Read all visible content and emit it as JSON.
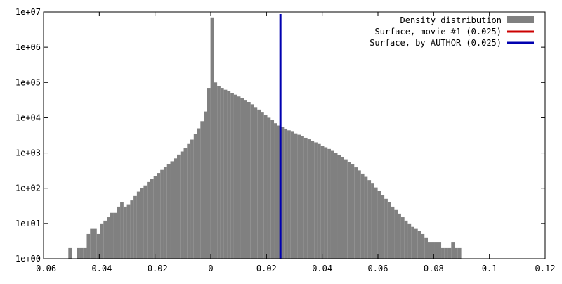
{
  "chart_data": {
    "type": "bar",
    "y_scale": "log",
    "x_range": [
      -0.06,
      0.12
    ],
    "y_range": [
      1,
      10000000
    ],
    "x_ticks": [
      "-0.06",
      "-0.04",
      "-0.02",
      "0",
      "0.02",
      "0.04",
      "0.06",
      "0.08",
      "0.1",
      "0.12"
    ],
    "x_tick_values": [
      -0.06,
      -0.04,
      -0.02,
      0,
      0.02,
      0.04,
      0.06,
      0.08,
      0.1,
      0.12
    ],
    "y_ticks": [
      "1e+00",
      "1e+01",
      "1e+02",
      "1e+03",
      "1e+04",
      "1e+05",
      "1e+06",
      "1e+07"
    ],
    "y_tick_values": [
      1,
      10,
      100,
      1000,
      10000,
      100000,
      1000000,
      10000000
    ],
    "legend_position": "top-right",
    "grid": false,
    "bin_width": 0.0012,
    "histogram": {
      "name": "Density distribution",
      "color": "#808080",
      "bins": [
        [
          -0.0505,
          2
        ],
        [
          -0.0495,
          0
        ],
        [
          -0.0485,
          0
        ],
        [
          -0.0475,
          2
        ],
        [
          -0.0463,
          2
        ],
        [
          -0.0451,
          2
        ],
        [
          -0.0439,
          5
        ],
        [
          -0.0427,
          7
        ],
        [
          -0.0415,
          7
        ],
        [
          -0.0403,
          5
        ],
        [
          -0.0391,
          10
        ],
        [
          -0.0379,
          12
        ],
        [
          -0.0367,
          15
        ],
        [
          -0.0355,
          20
        ],
        [
          -0.0343,
          20
        ],
        [
          -0.0331,
          30
        ],
        [
          -0.0319,
          40
        ],
        [
          -0.0307,
          30
        ],
        [
          -0.0295,
          35
        ],
        [
          -0.0283,
          45
        ],
        [
          -0.0271,
          60
        ],
        [
          -0.0259,
          80
        ],
        [
          -0.0247,
          100
        ],
        [
          -0.0235,
          120
        ],
        [
          -0.0223,
          150
        ],
        [
          -0.0211,
          180
        ],
        [
          -0.0199,
          220
        ],
        [
          -0.0187,
          270
        ],
        [
          -0.0175,
          330
        ],
        [
          -0.0163,
          400
        ],
        [
          -0.0151,
          480
        ],
        [
          -0.0139,
          580
        ],
        [
          -0.0127,
          700
        ],
        [
          -0.0115,
          900
        ],
        [
          -0.0103,
          1100
        ],
        [
          -0.0091,
          1400
        ],
        [
          -0.0079,
          1800
        ],
        [
          -0.0067,
          2400
        ],
        [
          -0.0055,
          3500
        ],
        [
          -0.0043,
          5000
        ],
        [
          -0.0031,
          8000
        ],
        [
          -0.0019,
          15000
        ],
        [
          -0.0007,
          70000
        ],
        [
          0.0005,
          7000000
        ],
        [
          0.0017,
          100000
        ],
        [
          0.0029,
          80000
        ],
        [
          0.0041,
          70000
        ],
        [
          0.0053,
          62000
        ],
        [
          0.0065,
          56000
        ],
        [
          0.0077,
          50000
        ],
        [
          0.0089,
          45000
        ],
        [
          0.0101,
          40000
        ],
        [
          0.0113,
          36000
        ],
        [
          0.0125,
          32000
        ],
        [
          0.0137,
          28000
        ],
        [
          0.0149,
          24000
        ],
        [
          0.0161,
          20000
        ],
        [
          0.0173,
          17000
        ],
        [
          0.0185,
          14000
        ],
        [
          0.0197,
          12000
        ],
        [
          0.0209,
          10000
        ],
        [
          0.0221,
          8500
        ],
        [
          0.0233,
          7000
        ],
        [
          0.0245,
          6000
        ],
        [
          0.0257,
          5400
        ],
        [
          0.0269,
          4900
        ],
        [
          0.0281,
          4400
        ],
        [
          0.0293,
          4000
        ],
        [
          0.0305,
          3600
        ],
        [
          0.0317,
          3300
        ],
        [
          0.0329,
          3000
        ],
        [
          0.0341,
          2700
        ],
        [
          0.0353,
          2450
        ],
        [
          0.0365,
          2200
        ],
        [
          0.0377,
          2000
        ],
        [
          0.0389,
          1800
        ],
        [
          0.0401,
          1600
        ],
        [
          0.0413,
          1450
        ],
        [
          0.0425,
          1300
        ],
        [
          0.0437,
          1150
        ],
        [
          0.0449,
          1000
        ],
        [
          0.0461,
          880
        ],
        [
          0.0473,
          770
        ],
        [
          0.0485,
          660
        ],
        [
          0.0497,
          560
        ],
        [
          0.0509,
          470
        ],
        [
          0.0521,
          390
        ],
        [
          0.0533,
          320
        ],
        [
          0.0545,
          260
        ],
        [
          0.0557,
          210
        ],
        [
          0.0569,
          170
        ],
        [
          0.0581,
          135
        ],
        [
          0.0593,
          105
        ],
        [
          0.0605,
          85
        ],
        [
          0.0617,
          65
        ],
        [
          0.0629,
          50
        ],
        [
          0.0641,
          40
        ],
        [
          0.0653,
          30
        ],
        [
          0.0665,
          24
        ],
        [
          0.0677,
          19
        ],
        [
          0.0689,
          15
        ],
        [
          0.0701,
          12
        ],
        [
          0.0713,
          10
        ],
        [
          0.0725,
          8
        ],
        [
          0.0737,
          7
        ],
        [
          0.0749,
          6
        ],
        [
          0.0761,
          5
        ],
        [
          0.0773,
          4
        ],
        [
          0.0785,
          3
        ],
        [
          0.0797,
          3
        ],
        [
          0.0809,
          3
        ],
        [
          0.0821,
          3
        ],
        [
          0.0833,
          2
        ],
        [
          0.0845,
          2
        ],
        [
          0.0857,
          2
        ],
        [
          0.0869,
          3
        ],
        [
          0.0881,
          2
        ],
        [
          0.0893,
          2
        ],
        [
          0.0905,
          1
        ]
      ]
    },
    "vlines": [
      {
        "name": "Surface, movie #1 (0.025)",
        "x": 0.025,
        "color": "#cc0000",
        "visible_in_plot": false
      },
      {
        "name": "Surface, by AUTHOR (0.025)",
        "x": 0.025,
        "color": "#0000b0",
        "visible_in_plot": true
      }
    ]
  }
}
